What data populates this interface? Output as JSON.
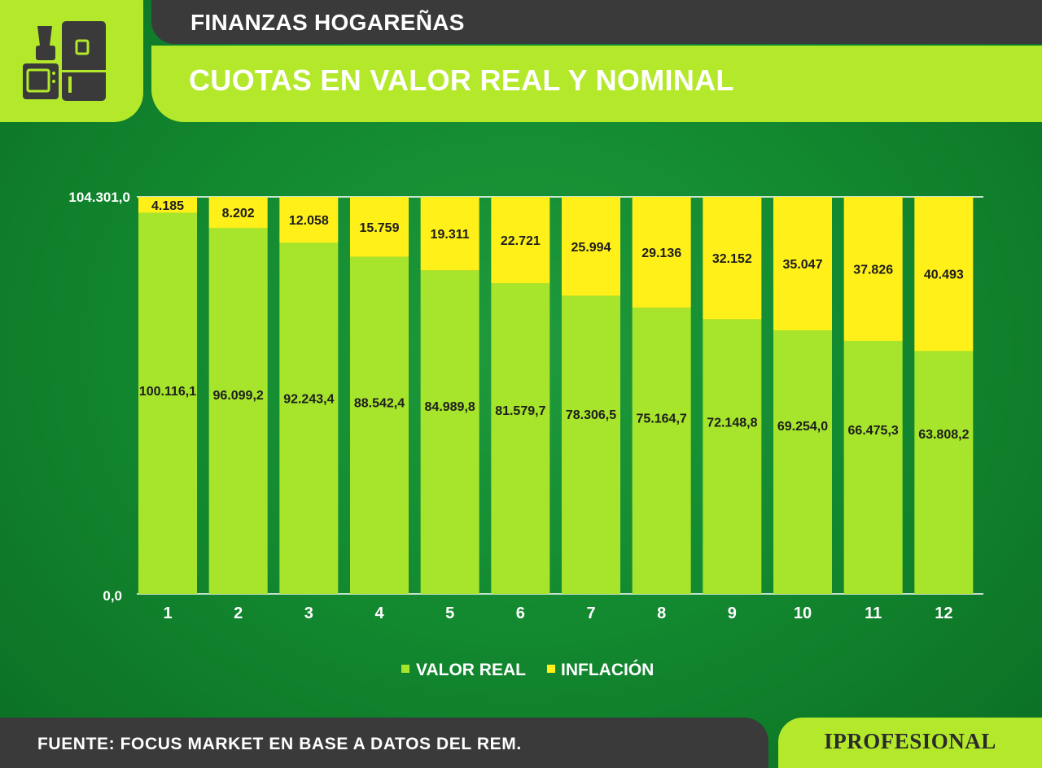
{
  "header": {
    "section_label": "FINANZAS HOGAREÑAS",
    "title": "CUOTAS EN VALOR REAL Y NOMINAL",
    "icon": "appliances-icon"
  },
  "colors": {
    "valor_real": "#a6e52c",
    "inflacion": "#fff01a",
    "accent": "#b3e92a",
    "dark": "#3a3a3a"
  },
  "chart_data": {
    "type": "bar",
    "stacked": true,
    "categories": [
      "1",
      "2",
      "3",
      "4",
      "5",
      "6",
      "7",
      "8",
      "9",
      "10",
      "11",
      "12"
    ],
    "series": [
      {
        "name": "VALOR REAL",
        "values": [
          100116.1,
          96099.2,
          92243.4,
          88542.4,
          84989.8,
          81579.7,
          78306.5,
          75164.7,
          72148.8,
          69254.0,
          66475.3,
          63808.2
        ],
        "labels": [
          "100.116,1",
          "96.099,2",
          "92.243,4",
          "88.542,4",
          "84.989,8",
          "81.579,7",
          "78.306,5",
          "75.164,7",
          "72.148,8",
          "69.254,0",
          "66.475,3",
          "63.808,2"
        ]
      },
      {
        "name": "INFLACIÓN",
        "values": [
          4185,
          8202,
          12058,
          15759,
          19311,
          22721,
          25994,
          29136,
          32152,
          35047,
          37826,
          40493
        ],
        "labels": [
          "4.185",
          "8.202",
          "12.058",
          "15.759",
          "19.311",
          "22.721",
          "25.994",
          "29.136",
          "32.152",
          "35.047",
          "37.826",
          "40.493"
        ]
      }
    ],
    "ylim": [
      0,
      104301
    ],
    "ytick_labels": [
      "0,0",
      "104.301,0"
    ],
    "grid": true,
    "legend": "bottom-center"
  },
  "footer": {
    "source": "FUENTE: FOCUS MARKET EN BASE A DATOS DEL REM.",
    "brand": "IPROFESIONAL"
  }
}
